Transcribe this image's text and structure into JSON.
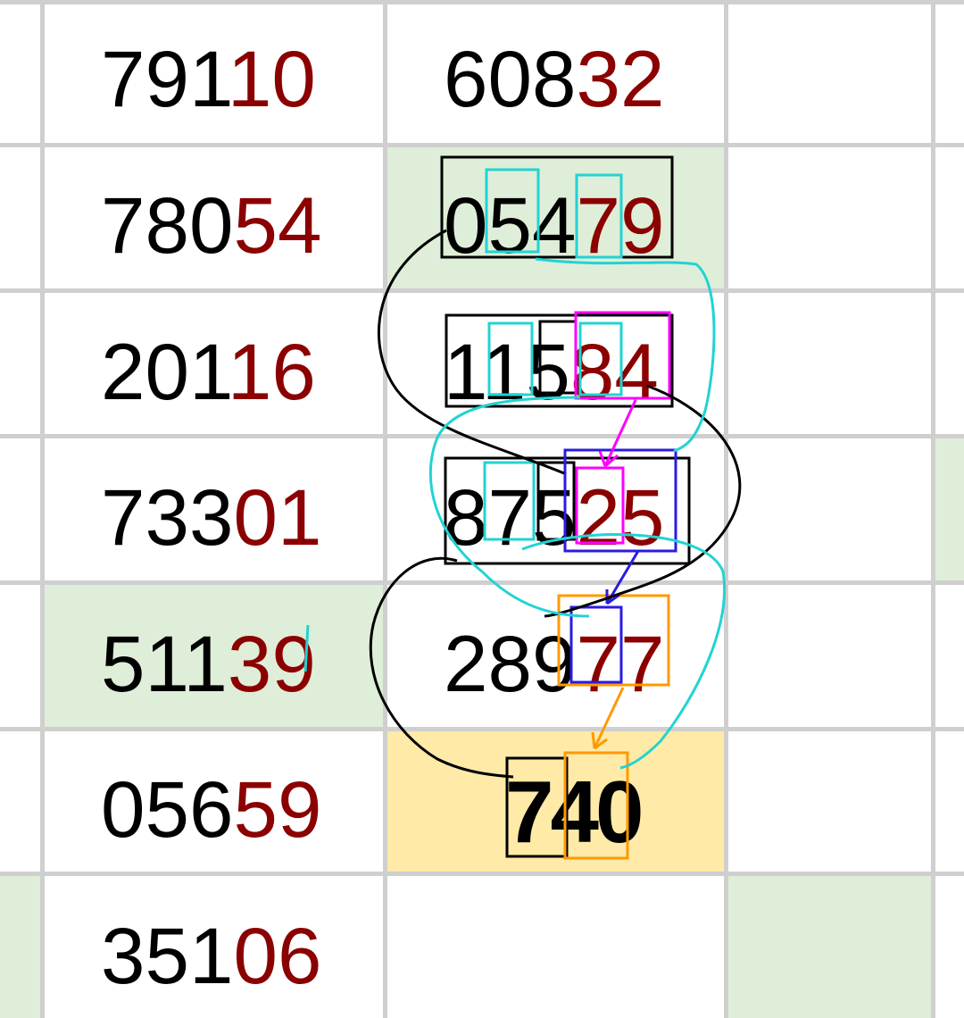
{
  "colors": {
    "grid": "#cfcfcf",
    "highlight_green": "#dfeed8",
    "highlight_yellow": "#ffeaa8",
    "digit_red": "#8b0000",
    "digit_black": "#000000"
  },
  "rows": [
    {
      "col1": {
        "prefix": "791",
        "suffix": "10"
      },
      "col2": {
        "prefix": "608",
        "suffix": "32"
      }
    },
    {
      "col1": {
        "prefix": "780",
        "suffix": "54"
      },
      "col2": {
        "prefix": "054",
        "suffix": "79"
      }
    },
    {
      "col1": {
        "prefix": "201",
        "suffix": "16"
      },
      "col2": {
        "prefix": "115",
        "suffix": "84"
      }
    },
    {
      "col1": {
        "prefix": "733",
        "suffix": "01"
      },
      "col2": {
        "prefix": "875",
        "suffix": "25"
      }
    },
    {
      "col1": {
        "prefix": "511",
        "suffix": "39"
      },
      "col2": {
        "prefix": "289",
        "suffix": "77"
      }
    },
    {
      "col1": {
        "prefix": "056",
        "suffix": "59"
      },
      "col2": {
        "prefix": "740",
        "suffix": ""
      }
    },
    {
      "col1": {
        "prefix": "351",
        "suffix": "06"
      },
      "col2": {
        "prefix": "",
        "suffix": ""
      }
    }
  ]
}
